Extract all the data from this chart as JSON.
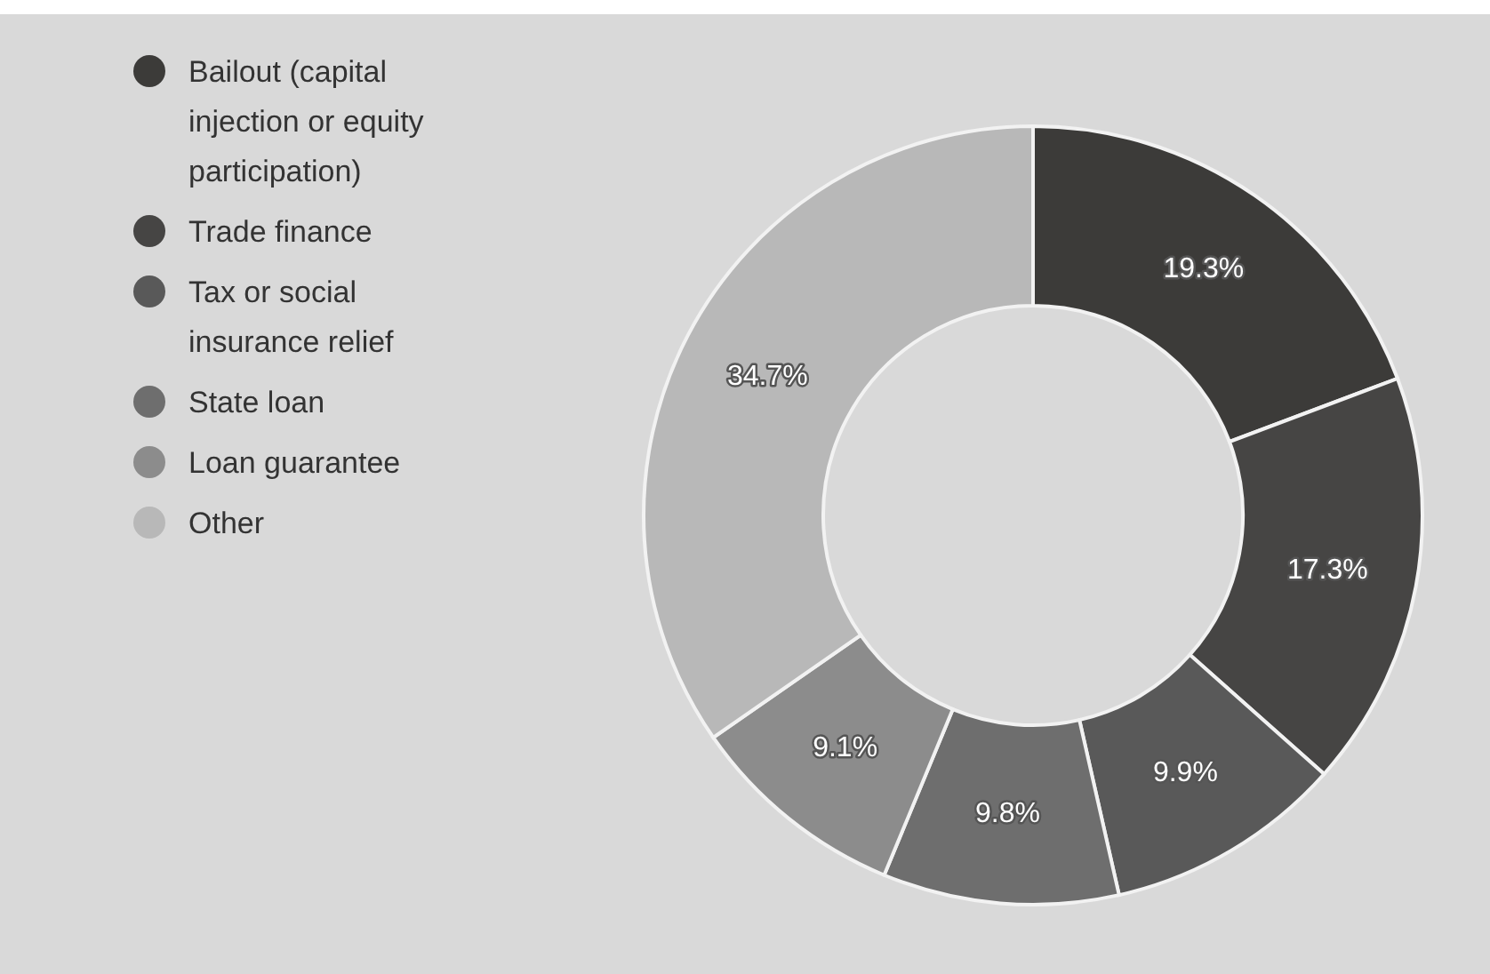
{
  "chart_data": {
    "type": "donut",
    "categories": [
      "Bailout (capital injection or equity participation)",
      "Trade finance",
      "Tax or social insurance relief",
      "State loan",
      "Loan guarantee",
      "Other"
    ],
    "values": [
      19.3,
      17.3,
      9.9,
      9.8,
      9.1,
      34.7
    ],
    "value_labels": [
      "19.3%",
      "17.3%",
      "9.9%",
      "9.8%",
      "9.1%",
      "34.7%"
    ],
    "colors": [
      "#3c3b39",
      "#464544",
      "#595959",
      "#6e6e6e",
      "#8c8c8c",
      "#b8b8b8"
    ],
    "legend": "top left"
  }
}
